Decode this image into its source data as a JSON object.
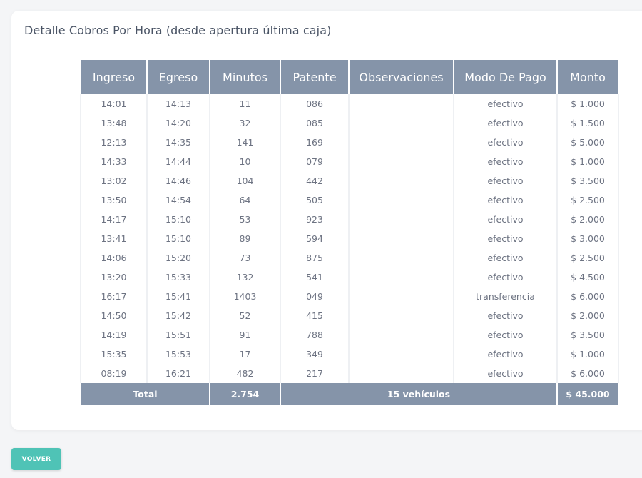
{
  "card": {
    "title": "Detalle Cobros Por Hora (desde apertura última caja)"
  },
  "table": {
    "columns": [
      "Ingreso",
      "Egreso",
      "Minutos",
      "Patente",
      "Observaciones",
      "Modo De Pago",
      "Monto"
    ],
    "rows": [
      [
        "14:01",
        "14:13",
        "11",
        "086",
        "",
        "efectivo",
        "$ 1.000"
      ],
      [
        "13:48",
        "14:20",
        "32",
        "085",
        "",
        "efectivo",
        "$ 1.500"
      ],
      [
        "12:13",
        "14:35",
        "141",
        "169",
        "",
        "efectivo",
        "$ 5.000"
      ],
      [
        "14:33",
        "14:44",
        "10",
        "079",
        "",
        "efectivo",
        "$ 1.000"
      ],
      [
        "13:02",
        "14:46",
        "104",
        "442",
        "",
        "efectivo",
        "$ 3.500"
      ],
      [
        "13:50",
        "14:54",
        "64",
        "505",
        "",
        "efectivo",
        "$ 2.500"
      ],
      [
        "14:17",
        "15:10",
        "53",
        "923",
        "",
        "efectivo",
        "$ 2.000"
      ],
      [
        "13:41",
        "15:10",
        "89",
        "594",
        "",
        "efectivo",
        "$ 3.000"
      ],
      [
        "14:06",
        "15:20",
        "73",
        "875",
        "",
        "efectivo",
        "$ 2.500"
      ],
      [
        "13:20",
        "15:33",
        "132",
        "541",
        "",
        "efectivo",
        "$ 4.500"
      ],
      [
        "16:17",
        "15:41",
        "1403",
        "049",
        "",
        "transferencia",
        "$ 6.000"
      ],
      [
        "14:50",
        "15:42",
        "52",
        "415",
        "",
        "efectivo",
        "$ 2.000"
      ],
      [
        "14:19",
        "15:51",
        "91",
        "788",
        "",
        "efectivo",
        "$ 3.500"
      ],
      [
        "15:35",
        "15:53",
        "17",
        "349",
        "",
        "efectivo",
        "$ 1.000"
      ],
      [
        "08:19",
        "16:21",
        "482",
        "217",
        "",
        "efectivo",
        "$ 6.000"
      ]
    ],
    "footer": {
      "total_label": "Total",
      "minutes_total": "2.754",
      "vehicles": "15 vehículos",
      "amount_total": "$ 45.000"
    }
  },
  "actions": {
    "back_label": "VOLVER"
  },
  "colors": {
    "header": "#8594a9",
    "accent": "#4fc3b6",
    "background": "#f4f5f7"
  }
}
